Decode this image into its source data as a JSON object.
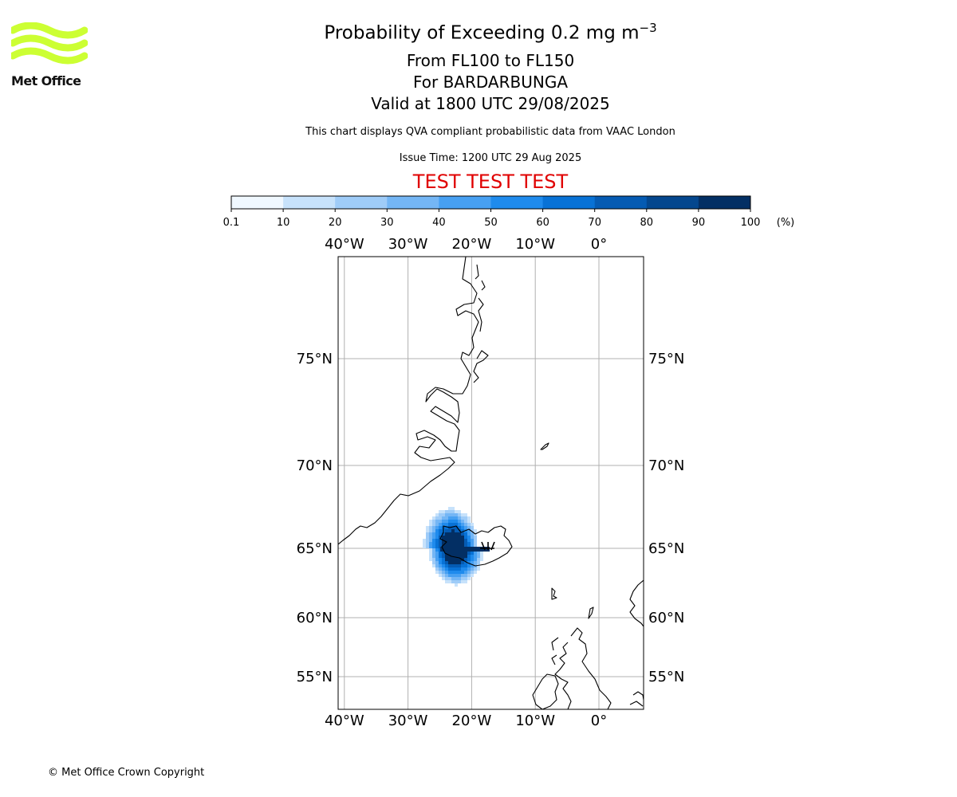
{
  "branding": {
    "org": "Met Office",
    "copyright": "© Met Office Crown Copyright",
    "logo_color": "#ccff33"
  },
  "header": {
    "title_main": "Probability of Exceeding 0.2 mg m",
    "title_exp": "−3",
    "levels": "From FL100 to FL150",
    "volcano": "For BARDARBUNGA",
    "valid": "Valid at 1800 UTC 29/08/2025",
    "disclaimer": "This chart displays QVA compliant probabilistic data from VAAC London",
    "issue": "Issue Time: 1200 UTC 29 Aug 2025",
    "test_banner": "TEST TEST TEST",
    "test_color": "#e00000"
  },
  "colorbar": {
    "unit": "(%)",
    "ticks": [
      "0.1",
      "10",
      "20",
      "30",
      "40",
      "50",
      "60",
      "70",
      "80",
      "90",
      "100"
    ],
    "colors": [
      "#f0f8ff",
      "#c7e2fb",
      "#9fccf8",
      "#74b6f5",
      "#47a0f2",
      "#1f8bed",
      "#0872d6",
      "#055bb3",
      "#04478e",
      "#032f64"
    ]
  },
  "map": {
    "lon_ticks": [
      "40°W",
      "30°W",
      "20°W",
      "10°W",
      "0°"
    ],
    "lon_values": [
      -40,
      -30,
      -20,
      -10,
      0
    ],
    "lat_ticks": [
      "75°N",
      "70°N",
      "65°N",
      "60°N",
      "55°N"
    ],
    "lat_values": [
      75,
      70,
      65,
      60,
      55
    ],
    "gridline_color": "#b0b0b0",
    "plume": {
      "volcano": "BARDARBUNGA",
      "source_lon": -17.5,
      "source_lat": 64.6,
      "lon_range": [
        -27,
        -17
      ],
      "lat_range": [
        62.8,
        67.8
      ]
    }
  }
}
